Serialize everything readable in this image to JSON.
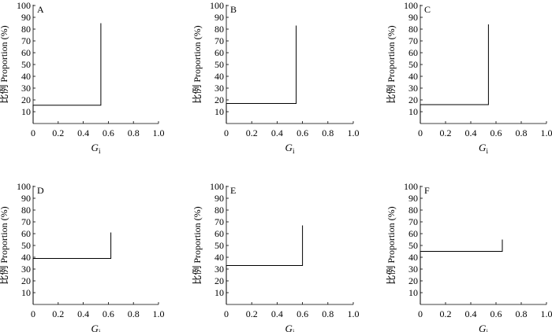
{
  "chart_data": [
    {
      "type": "line",
      "panel_label": "A",
      "xlabel": "G",
      "xlabel_sub": "i",
      "ylabel": "比例 Proportion (%)",
      "xlim": [
        0,
        1.0
      ],
      "ylim": [
        0,
        100
      ],
      "x_ticks": [
        "0",
        "0.2",
        "0.4",
        "0.6",
        "0.8",
        "1.0"
      ],
      "y_ticks": [
        "10",
        "20",
        "30",
        "40",
        "50",
        "60",
        "70",
        "80",
        "90",
        "100"
      ],
      "series": [
        {
          "x": [
            0,
            0,
            0.54,
            0.54
          ],
          "y": [
            0,
            15.5,
            15.5,
            85
          ]
        }
      ]
    },
    {
      "type": "line",
      "panel_label": "B",
      "xlabel": "G",
      "xlabel_sub": "i",
      "ylabel": "比例 Proportion (%)",
      "xlim": [
        0,
        1.0
      ],
      "ylim": [
        0,
        100
      ],
      "x_ticks": [
        "0",
        "0.2",
        "0.4",
        "0.6",
        "0.8",
        "1.0"
      ],
      "y_ticks": [
        "10",
        "20",
        "30",
        "40",
        "50",
        "60",
        "70",
        "80",
        "90",
        "100"
      ],
      "series": [
        {
          "x": [
            0,
            0,
            0.55,
            0.55
          ],
          "y": [
            0,
            17,
            17,
            83
          ]
        }
      ]
    },
    {
      "type": "line",
      "panel_label": "C",
      "xlabel": "G",
      "xlabel_sub": "i",
      "ylabel": "比例 Proportion (%)",
      "xlim": [
        0,
        1.0
      ],
      "ylim": [
        0,
        100
      ],
      "x_ticks": [
        "0",
        "0.2",
        "0.4",
        "0.6",
        "0.8",
        "1.0"
      ],
      "y_ticks": [
        "10",
        "20",
        "30",
        "40",
        "50",
        "60",
        "70",
        "80",
        "90",
        "100"
      ],
      "series": [
        {
          "x": [
            0,
            0,
            0.54,
            0.54
          ],
          "y": [
            0,
            16,
            16,
            84
          ]
        }
      ]
    },
    {
      "type": "line",
      "panel_label": "D",
      "xlabel": "G",
      "xlabel_sub": "i",
      "ylabel": "比例 Proportion (%)",
      "xlim": [
        0,
        1.0
      ],
      "ylim": [
        0,
        100
      ],
      "x_ticks": [
        "0",
        "0.2",
        "0.4",
        "0.6",
        "0.8",
        "1.0"
      ],
      "y_ticks": [
        "10",
        "20",
        "30",
        "40",
        "50",
        "60",
        "70",
        "80",
        "90",
        "100"
      ],
      "series": [
        {
          "x": [
            0,
            0,
            0.62,
            0.62
          ],
          "y": [
            0,
            39,
            39,
            61
          ]
        }
      ]
    },
    {
      "type": "line",
      "panel_label": "E",
      "xlabel": "G",
      "xlabel_sub": "i",
      "ylabel": "比例 Proportion (%)",
      "xlim": [
        0,
        1.0
      ],
      "ylim": [
        0,
        100
      ],
      "x_ticks": [
        "0",
        "0.2",
        "0.4",
        "0.6",
        "0.8",
        "1.0"
      ],
      "y_ticks": [
        "10",
        "20",
        "30",
        "40",
        "50",
        "60",
        "70",
        "80",
        "90",
        "100"
      ],
      "series": [
        {
          "x": [
            0,
            0,
            0.6,
            0.6
          ],
          "y": [
            0,
            33,
            33,
            67
          ]
        }
      ]
    },
    {
      "type": "line",
      "panel_label": "F",
      "xlabel": "G",
      "xlabel_sub": "i",
      "ylabel": "比例 Proportion (%)",
      "xlim": [
        0,
        1.0
      ],
      "ylim": [
        0,
        100
      ],
      "x_ticks": [
        "0",
        "0.2",
        "0.4",
        "0.6",
        "0.8",
        "1.0"
      ],
      "y_ticks": [
        "10",
        "20",
        "30",
        "40",
        "50",
        "60",
        "70",
        "80",
        "90",
        "100"
      ],
      "series": [
        {
          "x": [
            0,
            0,
            0.65,
            0.65
          ],
          "y": [
            0,
            45,
            45,
            55
          ]
        }
      ]
    }
  ]
}
